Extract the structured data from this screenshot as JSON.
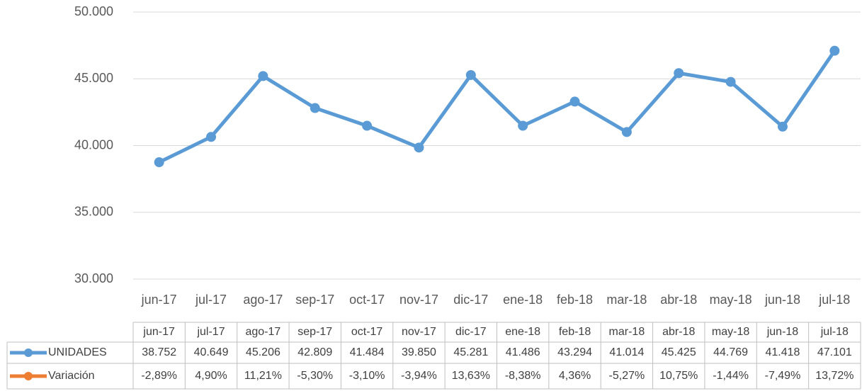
{
  "chart_data": {
    "type": "line",
    "categories": [
      "jun-17",
      "jul-17",
      "ago-17",
      "sep-17",
      "oct-17",
      "nov-17",
      "dic-17",
      "ene-18",
      "feb-18",
      "mar-18",
      "abr-18",
      "may-18",
      "jun-18",
      "jul-18"
    ],
    "series": [
      {
        "name": "UNIDADES",
        "color": "#5b9bd5",
        "values": [
          38752,
          40649,
          45206,
          42809,
          41484,
          39850,
          45281,
          41486,
          43294,
          41014,
          45425,
          44769,
          41418,
          47101
        ],
        "value_labels": [
          "38.752",
          "40.649",
          "45.206",
          "42.809",
          "41.484",
          "39.850",
          "45.281",
          "41.486",
          "43.294",
          "41.014",
          "45.425",
          "44.769",
          "41.418",
          "47.101"
        ]
      },
      {
        "name": "Variación",
        "color": "#ed7d31",
        "values": [
          -2.89,
          4.9,
          11.21,
          -5.3,
          -3.1,
          -3.94,
          13.63,
          -8.38,
          4.36,
          -5.27,
          10.75,
          -1.44,
          -7.49,
          13.72
        ],
        "value_labels": [
          "-2,89%",
          "4,90%",
          "11,21%",
          "-5,30%",
          "-3,10%",
          "-3,94%",
          "13,63%",
          "-8,38%",
          "4,36%",
          "-5,27%",
          "10,75%",
          "-1,44%",
          "-7,49%",
          "13,72%"
        ]
      }
    ],
    "ylim": [
      30000,
      50000
    ],
    "yticks": [
      {
        "value": 30000,
        "label": "30.000"
      },
      {
        "value": 35000,
        "label": "35.000"
      },
      {
        "value": 40000,
        "label": "40.000"
      },
      {
        "value": 45000,
        "label": "45.000"
      },
      {
        "value": 50000,
        "label": "50.000"
      }
    ],
    "grid": true
  }
}
